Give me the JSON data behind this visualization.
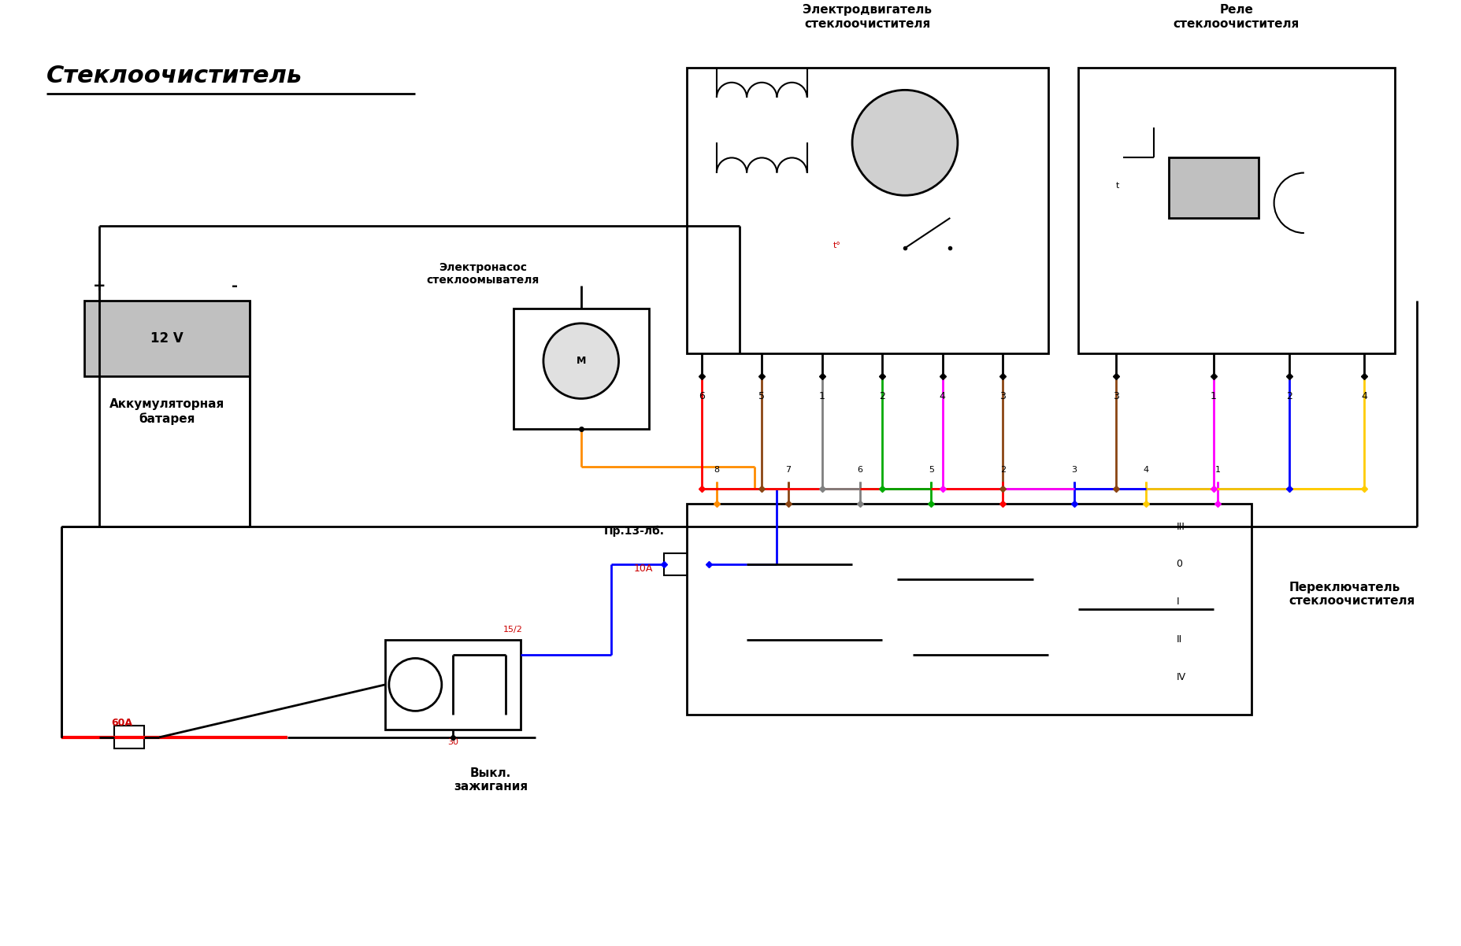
{
  "title": "Стеклоочиститель",
  "bg_color": "#ffffff",
  "title_color": "#000000",
  "title_fontsize": 22,
  "fig_width": 18.55,
  "fig_height": 12.02,
  "labels": {
    "battery": "Аккумуляторная\nбатарея",
    "pump": "Электронасос\nстеклоомывателя",
    "ignition": "Выкл.\nзажигания",
    "fuse": "Пр.13-лб.",
    "fuse_val": "10А",
    "motor": "Электродвигатель\nстеклоочистителя",
    "relay": "Реле\nстеклоочистителя",
    "switch": "Переключатель\nстеклоочистителя",
    "battery_v": "12 V",
    "fuse_60a": "60А",
    "pin_15_2": "15/2",
    "pin_30": "30"
  },
  "colors": {
    "red": "#ff0000",
    "blue": "#0000ff",
    "green": "#00aa00",
    "brown": "#8B4513",
    "orange": "#ff8c00",
    "magenta": "#ff00ff",
    "gray": "#808080",
    "yellow": "#ffcc00",
    "black": "#000000",
    "white": "#ffffff",
    "battery_fill": "#c0c0c0",
    "label_red": "#cc0000"
  },
  "motor_pins": [
    "6",
    "5",
    "1",
    "2",
    "4",
    "3"
  ],
  "relay_pins": [
    "3",
    "1",
    "2",
    "4"
  ],
  "switch_pins": [
    "8",
    "7",
    "6",
    "5",
    "2",
    "3",
    "4",
    "1"
  ],
  "switch_modes": [
    "III",
    "0",
    "I",
    "II",
    "IV"
  ]
}
